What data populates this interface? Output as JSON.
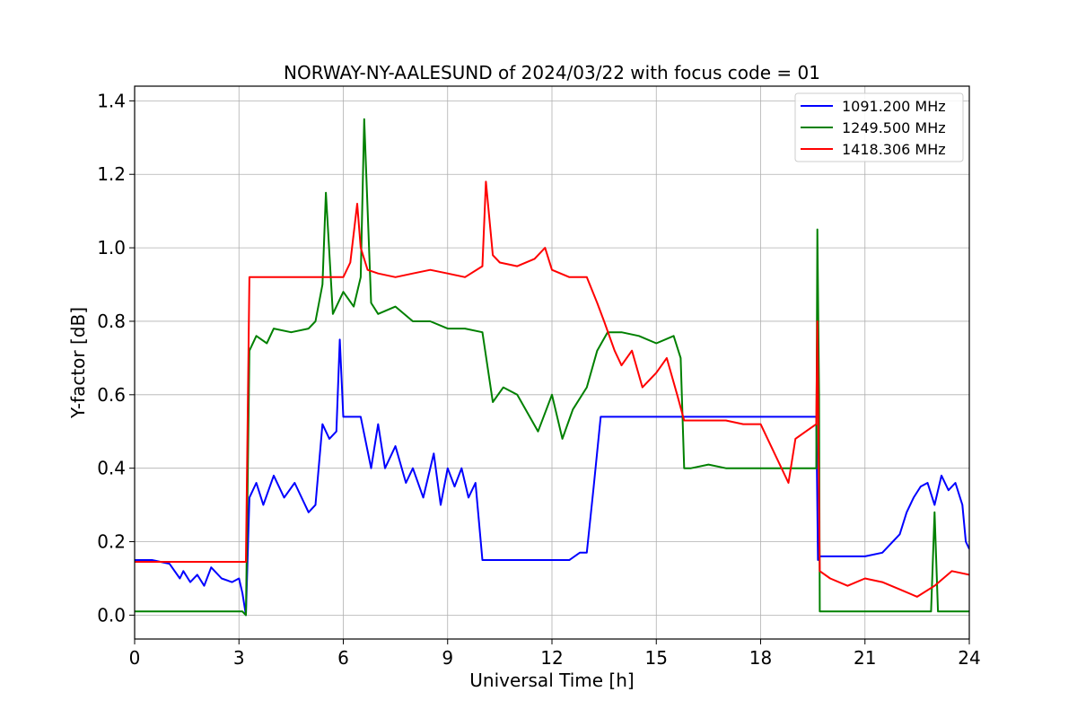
{
  "chart_data": {
    "type": "line",
    "title": "NORWAY-NY-AALESUND of 2024/03/22 with focus code = 01",
    "xlabel": "Universal Time [h]",
    "ylabel": "Y-factor [dB]",
    "xlim": [
      0,
      24
    ],
    "ylim": [
      -0.065,
      1.44
    ],
    "xticks": [
      0,
      3,
      6,
      9,
      12,
      15,
      18,
      21,
      24
    ],
    "xtick_labels": [
      "0",
      "3",
      "6",
      "9",
      "12",
      "15",
      "18",
      "21",
      "24"
    ],
    "yticks": [
      0.0,
      0.2,
      0.4,
      0.6,
      0.8,
      1.0,
      1.2,
      1.4
    ],
    "ytick_labels": [
      "0.0",
      "0.2",
      "0.4",
      "0.6",
      "0.8",
      "1.0",
      "1.2",
      "1.4"
    ],
    "grid": true,
    "legend_position": "top-right",
    "series": [
      {
        "name": "1091.200 MHz",
        "color": "#0000ff",
        "x": [
          0,
          0.5,
          1.0,
          1.3,
          1.4,
          1.6,
          1.8,
          2.0,
          2.2,
          2.5,
          2.8,
          3.0,
          3.1,
          3.2,
          3.3,
          3.5,
          3.7,
          4.0,
          4.3,
          4.6,
          5.0,
          5.2,
          5.4,
          5.6,
          5.8,
          5.9,
          6.0,
          6.2,
          6.5,
          6.8,
          7.0,
          7.2,
          7.5,
          7.8,
          8.0,
          8.3,
          8.6,
          8.8,
          9.0,
          9.2,
          9.4,
          9.6,
          9.8,
          10.0,
          10.2,
          10.5,
          11.0,
          11.5,
          12.0,
          12.5,
          12.8,
          13.0,
          13.2,
          13.4,
          13.6,
          14.0,
          15.0,
          16.0,
          17.0,
          18.0,
          19.0,
          19.6,
          19.65,
          19.7,
          20.0,
          20.5,
          21.0,
          21.5,
          22.0,
          22.2,
          22.4,
          22.6,
          22.8,
          23.0,
          23.2,
          23.4,
          23.6,
          23.8,
          23.9,
          24.0
        ],
        "values": [
          0.15,
          0.15,
          0.14,
          0.1,
          0.12,
          0.09,
          0.11,
          0.08,
          0.13,
          0.1,
          0.09,
          0.1,
          0.06,
          0.0,
          0.32,
          0.36,
          0.3,
          0.38,
          0.32,
          0.36,
          0.28,
          0.3,
          0.52,
          0.48,
          0.5,
          0.75,
          0.54,
          0.54,
          0.54,
          0.4,
          0.52,
          0.4,
          0.46,
          0.36,
          0.4,
          0.32,
          0.44,
          0.3,
          0.4,
          0.35,
          0.4,
          0.32,
          0.36,
          0.15,
          0.15,
          0.15,
          0.15,
          0.15,
          0.15,
          0.15,
          0.17,
          0.17,
          0.35,
          0.54,
          0.54,
          0.54,
          0.54,
          0.54,
          0.54,
          0.54,
          0.54,
          0.54,
          0.15,
          0.16,
          0.16,
          0.16,
          0.16,
          0.17,
          0.22,
          0.28,
          0.32,
          0.35,
          0.36,
          0.3,
          0.38,
          0.34,
          0.36,
          0.3,
          0.2,
          0.18
        ]
      },
      {
        "name": "1249.500 MHz",
        "color": "#008000",
        "x": [
          0,
          0.5,
          1.0,
          2.0,
          3.0,
          3.1,
          3.2,
          3.3,
          3.5,
          3.8,
          4.0,
          4.5,
          5.0,
          5.2,
          5.4,
          5.5,
          5.7,
          6.0,
          6.3,
          6.5,
          6.6,
          6.8,
          7.0,
          7.5,
          8.0,
          8.5,
          9.0,
          9.5,
          10.0,
          10.3,
          10.6,
          11.0,
          11.3,
          11.6,
          12.0,
          12.3,
          12.6,
          13.0,
          13.3,
          13.6,
          14.0,
          14.5,
          15.0,
          15.5,
          15.7,
          15.8,
          16.0,
          16.5,
          17.0,
          17.5,
          18.0,
          18.5,
          19.0,
          19.5,
          19.6,
          19.63,
          19.68,
          19.7,
          20.0,
          21.0,
          22.0,
          22.9,
          23.0,
          23.1,
          23.5,
          24.0
        ],
        "values": [
          0.01,
          0.01,
          0.01,
          0.01,
          0.01,
          0.01,
          0.0,
          0.72,
          0.76,
          0.74,
          0.78,
          0.77,
          0.78,
          0.8,
          0.9,
          1.15,
          0.82,
          0.88,
          0.84,
          0.92,
          1.35,
          0.85,
          0.82,
          0.84,
          0.8,
          0.8,
          0.78,
          0.78,
          0.77,
          0.58,
          0.62,
          0.6,
          0.55,
          0.5,
          0.6,
          0.48,
          0.56,
          0.62,
          0.72,
          0.77,
          0.77,
          0.76,
          0.74,
          0.76,
          0.7,
          0.4,
          0.4,
          0.41,
          0.4,
          0.4,
          0.4,
          0.4,
          0.4,
          0.4,
          0.4,
          1.05,
          0.6,
          0.01,
          0.01,
          0.01,
          0.01,
          0.01,
          0.28,
          0.01,
          0.01,
          0.01
        ]
      },
      {
        "name": "1418.306 MHz",
        "color": "#ff0000",
        "x": [
          0,
          0.5,
          1.0,
          1.5,
          2.0,
          2.5,
          3.0,
          3.2,
          3.3,
          4.0,
          4.5,
          5.0,
          5.5,
          6.0,
          6.2,
          6.4,
          6.5,
          6.7,
          7.0,
          7.5,
          8.0,
          8.5,
          9.0,
          9.5,
          10.0,
          10.1,
          10.3,
          10.5,
          11.0,
          11.5,
          11.8,
          12.0,
          12.5,
          13.0,
          13.3,
          13.5,
          13.8,
          14.0,
          14.3,
          14.6,
          15.0,
          15.3,
          15.6,
          15.8,
          16.0,
          16.5,
          17.0,
          17.5,
          18.0,
          18.3,
          18.6,
          18.8,
          19.0,
          19.3,
          19.6,
          19.63,
          19.68,
          19.7,
          20.0,
          20.5,
          21.0,
          21.5,
          22.0,
          22.5,
          23.0,
          23.5,
          24.0
        ],
        "values": [
          0.145,
          0.145,
          0.145,
          0.145,
          0.145,
          0.145,
          0.145,
          0.145,
          0.92,
          0.92,
          0.92,
          0.92,
          0.92,
          0.92,
          0.96,
          1.12,
          1.0,
          0.94,
          0.93,
          0.92,
          0.93,
          0.94,
          0.93,
          0.92,
          0.95,
          1.18,
          0.98,
          0.96,
          0.95,
          0.97,
          1.0,
          0.94,
          0.92,
          0.92,
          0.85,
          0.8,
          0.72,
          0.68,
          0.72,
          0.62,
          0.66,
          0.7,
          0.6,
          0.53,
          0.53,
          0.53,
          0.53,
          0.52,
          0.52,
          0.46,
          0.4,
          0.36,
          0.48,
          0.5,
          0.52,
          0.8,
          0.3,
          0.12,
          0.1,
          0.08,
          0.1,
          0.09,
          0.07,
          0.05,
          0.08,
          0.12,
          0.11
        ]
      }
    ]
  }
}
